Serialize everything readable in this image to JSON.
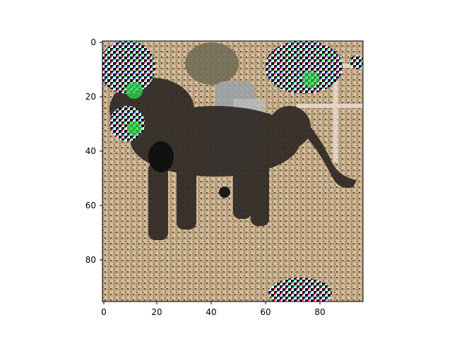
{
  "figure": {
    "axes": {
      "x_ticks": [
        "0",
        "20",
        "40",
        "60",
        "80"
      ],
      "y_ticks": [
        "0",
        "20",
        "40",
        "60",
        "80"
      ],
      "x_range": [
        0,
        96
      ],
      "y_range": [
        0,
        96
      ]
    },
    "image": {
      "subject": "pixelated photo of a black dog being ridden by a child on a dirt ground, with noisy colored patches"
    },
    "colors": {
      "ground": "#c8ad88",
      "dog": "#2f2925",
      "axis": "#000000"
    }
  }
}
